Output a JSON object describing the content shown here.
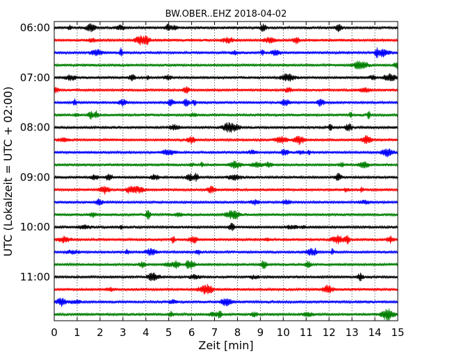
{
  "chart_data": {
    "type": "line",
    "title": "BW.OBER..EHZ 2018-04-02",
    "xlabel": "Zeit  [min]",
    "ylabel": "UTC (Lokalzeit = UTC + 02:00)",
    "xlim": [
      0,
      15
    ],
    "x_ticks": [
      "0",
      "1",
      "2",
      "3",
      "4",
      "5",
      "6",
      "7",
      "8",
      "9",
      "10",
      "11",
      "12",
      "13",
      "14",
      "15"
    ],
    "y_ticks": [
      "06:00",
      "07:00",
      "08:00",
      "09:00",
      "10:00",
      "11:00"
    ],
    "grid": "vertical dotted lines at each minute",
    "trace_colors": [
      "#000000",
      "#ff0000",
      "#0000ff",
      "#008000"
    ],
    "series": [
      {
        "start": "06:00",
        "color": "#000000"
      },
      {
        "start": "06:15",
        "color": "#ff0000"
      },
      {
        "start": "06:30",
        "color": "#0000ff"
      },
      {
        "start": "06:45",
        "color": "#008000"
      },
      {
        "start": "07:00",
        "color": "#000000"
      },
      {
        "start": "07:15",
        "color": "#ff0000"
      },
      {
        "start": "07:30",
        "color": "#0000ff"
      },
      {
        "start": "07:45",
        "color": "#008000"
      },
      {
        "start": "08:00",
        "color": "#000000"
      },
      {
        "start": "08:15",
        "color": "#ff0000"
      },
      {
        "start": "08:30",
        "color": "#0000ff"
      },
      {
        "start": "08:45",
        "color": "#008000"
      },
      {
        "start": "09:00",
        "color": "#000000"
      },
      {
        "start": "09:15",
        "color": "#ff0000"
      },
      {
        "start": "09:30",
        "color": "#0000ff"
      },
      {
        "start": "09:45",
        "color": "#008000"
      },
      {
        "start": "10:00",
        "color": "#000000"
      },
      {
        "start": "10:15",
        "color": "#ff0000"
      },
      {
        "start": "10:30",
        "color": "#0000ff"
      },
      {
        "start": "10:45",
        "color": "#008000"
      },
      {
        "start": "11:00",
        "color": "#000000"
      },
      {
        "start": "11:15",
        "color": "#ff0000"
      },
      {
        "start": "11:30",
        "color": "#0000ff"
      },
      {
        "start": "11:45",
        "color": "#008000"
      }
    ]
  }
}
